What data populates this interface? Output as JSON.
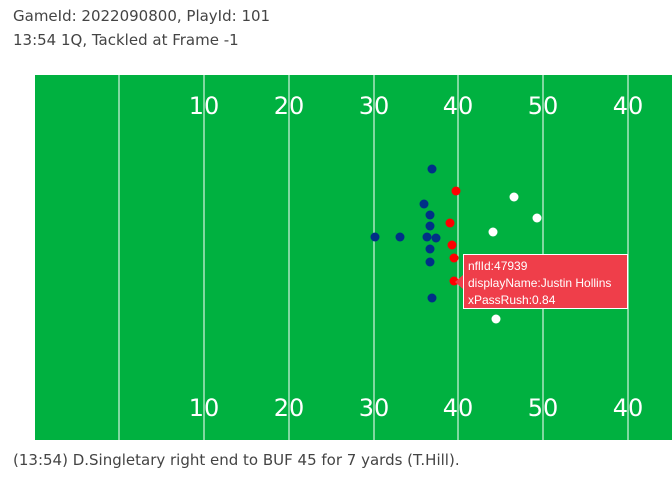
{
  "title": {
    "line1": "GameId: 2022090800, PlayId: 101",
    "line2": "13:54 1Q, Tackled at Frame -1"
  },
  "field": {
    "color": "#00b140",
    "line_color": "#ffffff",
    "yard_numbers_top": [
      "10",
      "20",
      "30",
      "40",
      "50",
      "40"
    ],
    "yard_numbers_bottom": [
      "10",
      "20",
      "30",
      "40",
      "50",
      "40"
    ]
  },
  "colors": {
    "offense": "#003087",
    "defense": "#ff0000",
    "tooltip": "#ef3e4a",
    "white_team": "#ffffff"
  },
  "tooltip": {
    "line1": "nflId:47939",
    "line2": "displayName:Justin Hollins",
    "line3": "xPassRush:0.84"
  },
  "caption": "(13:54) D.Singletary right end to BUF 45 for 7 yards (T.Hill)."
}
